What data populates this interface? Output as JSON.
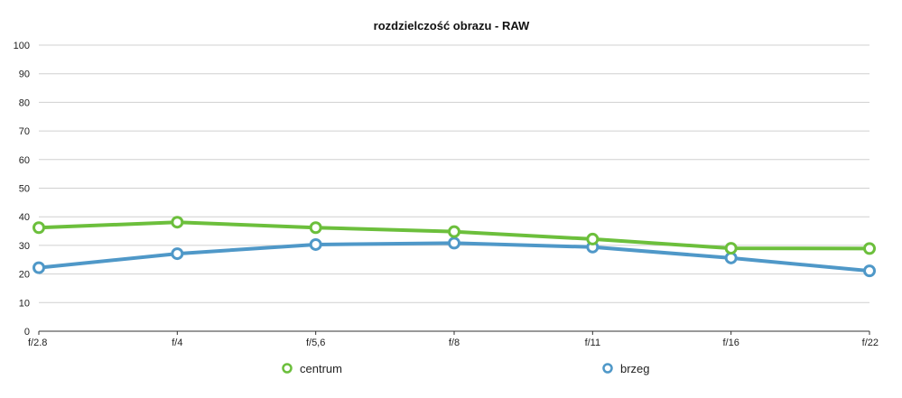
{
  "chart_data": {
    "type": "line",
    "title": "rozdzielczość obrazu - RAW",
    "xlabel": "",
    "ylabel": "",
    "categories": [
      "f/2.8",
      "f/4",
      "f/5,6",
      "f/8",
      "f/11",
      "f/16",
      "f/22"
    ],
    "ylim": [
      0,
      100
    ],
    "yticks": [
      0,
      10,
      20,
      30,
      40,
      50,
      60,
      70,
      80,
      90,
      100
    ],
    "grid": true,
    "legend_position": "bottom",
    "series": [
      {
        "name": "centrum",
        "color": "#6cbf3c",
        "values": [
          36.2,
          38.1,
          36.2,
          34.8,
          32.2,
          29.0,
          28.9
        ]
      },
      {
        "name": "brzeg",
        "color": "#4f98c8",
        "values": [
          22.2,
          27.1,
          30.3,
          30.8,
          29.4,
          25.6,
          21.1
        ]
      }
    ]
  }
}
